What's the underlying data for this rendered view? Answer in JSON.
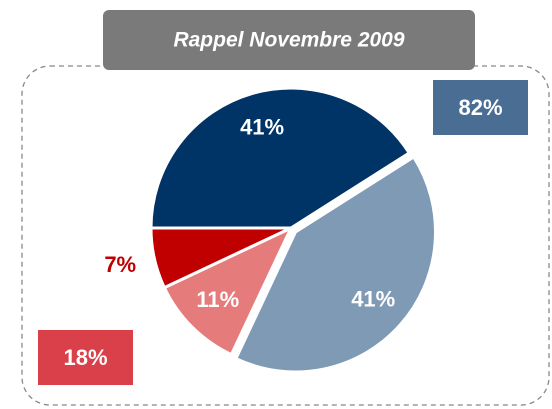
{
  "chart_data": {
    "type": "pie",
    "title": "Rappel Novembre 2009",
    "values": [
      41,
      41,
      11,
      7
    ],
    "value_labels": [
      "41%",
      "41%",
      "11%",
      "7%"
    ],
    "colors": [
      "#003366",
      "#7f9ab5",
      "#e57b7b",
      "#c00000"
    ],
    "annotations": [
      {
        "label": "82%",
        "color": "#4a6d94"
      },
      {
        "label": "18%",
        "color": "#d9404a"
      }
    ]
  }
}
